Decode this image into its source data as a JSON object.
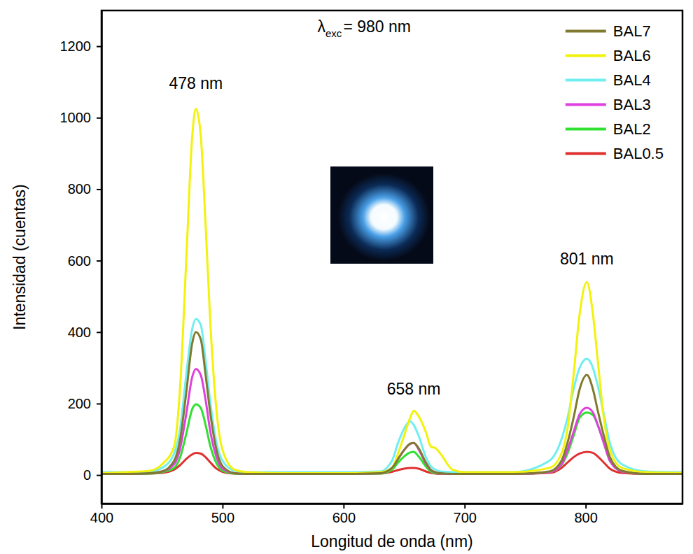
{
  "chart_data": {
    "type": "line",
    "x_label": "Longitud de onda (nm)",
    "y_label": "Intensidad (cuentas)",
    "xlim": [
      400,
      880
    ],
    "ylim": [
      -80,
      1300
    ],
    "xticks": [
      400,
      500,
      600,
      700,
      800
    ],
    "yticks": [
      0,
      200,
      400,
      600,
      800,
      1000,
      1200
    ],
    "grid": false,
    "legend": "upper right",
    "annotations": [
      {
        "text": "λ",
        "subscript": "exc",
        "suffix": "= 980 nm",
        "x": 617,
        "y": 1240
      },
      {
        "text": "478 nm",
        "x": 478,
        "y": 1080
      },
      {
        "text": "658 nm",
        "x": 658,
        "y": 225
      },
      {
        "text": "801 nm",
        "x": 801,
        "y": 590
      }
    ],
    "x": [
      400,
      420,
      440,
      450,
      460,
      465,
      470,
      475,
      478,
      482,
      486,
      490,
      495,
      500,
      510,
      520,
      560,
      600,
      630,
      640,
      645,
      650,
      655,
      658,
      662,
      668,
      672,
      676,
      680,
      690,
      700,
      740,
      770,
      780,
      785,
      790,
      795,
      801,
      806,
      810,
      815,
      820,
      830,
      850,
      880
    ],
    "series": [
      {
        "name": "BAL7",
        "color": "#807a2e",
        "values": [
          3,
          3,
          5,
          10,
          40,
          100,
          230,
          370,
          400,
          380,
          280,
          170,
          70,
          25,
          5,
          3,
          3,
          3,
          5,
          20,
          45,
          70,
          88,
          90,
          75,
          35,
          15,
          8,
          5,
          3,
          3,
          3,
          10,
          40,
          90,
          160,
          240,
          280,
          240,
          180,
          110,
          50,
          12,
          3,
          3
        ]
      },
      {
        "name": "BAL6",
        "color": "#f2f20a",
        "values": [
          5,
          8,
          12,
          30,
          80,
          250,
          600,
          950,
          1025,
          950,
          700,
          420,
          180,
          70,
          15,
          8,
          5,
          5,
          8,
          20,
          60,
          110,
          160,
          180,
          165,
          120,
          80,
          75,
          60,
          15,
          8,
          8,
          20,
          60,
          130,
          280,
          450,
          540,
          450,
          320,
          160,
          70,
          20,
          8,
          6
        ]
      },
      {
        "name": "BAL4",
        "color": "#70eef0",
        "values": [
          8,
          8,
          10,
          20,
          60,
          130,
          280,
          410,
          437,
          420,
          320,
          200,
          90,
          40,
          12,
          8,
          8,
          8,
          10,
          40,
          90,
          130,
          150,
          140,
          110,
          50,
          25,
          15,
          10,
          8,
          8,
          8,
          40,
          100,
          160,
          240,
          300,
          325,
          300,
          250,
          170,
          90,
          30,
          10,
          8
        ]
      },
      {
        "name": "BAL3",
        "color": "#e040e0",
        "values": [
          3,
          3,
          5,
          10,
          30,
          75,
          170,
          275,
          297,
          280,
          210,
          120,
          50,
          18,
          5,
          3,
          3,
          3,
          5,
          20,
          45,
          70,
          87,
          90,
          72,
          32,
          14,
          7,
          4,
          3,
          3,
          3,
          8,
          30,
          70,
          120,
          170,
          188,
          175,
          140,
          90,
          40,
          10,
          3,
          3
        ]
      },
      {
        "name": "BAL2",
        "color": "#30e030",
        "values": [
          3,
          3,
          4,
          8,
          20,
          50,
          115,
          185,
          198,
          188,
          140,
          80,
          33,
          12,
          4,
          3,
          3,
          3,
          4,
          15,
          35,
          52,
          63,
          65,
          52,
          24,
          10,
          5,
          4,
          3,
          3,
          3,
          8,
          28,
          60,
          110,
          160,
          175,
          168,
          140,
          90,
          40,
          10,
          3,
          3
        ]
      },
      {
        "name": "BAL0.5",
        "color": "#e03030",
        "values": [
          3,
          3,
          4,
          6,
          15,
          28,
          45,
          58,
          62,
          60,
          50,
          35,
          18,
          9,
          4,
          3,
          3,
          3,
          4,
          9,
          14,
          18,
          20,
          20,
          18,
          10,
          6,
          4,
          3,
          3,
          3,
          3,
          6,
          20,
          35,
          50,
          60,
          65,
          62,
          52,
          35,
          18,
          6,
          3,
          3
        ]
      }
    ]
  }
}
